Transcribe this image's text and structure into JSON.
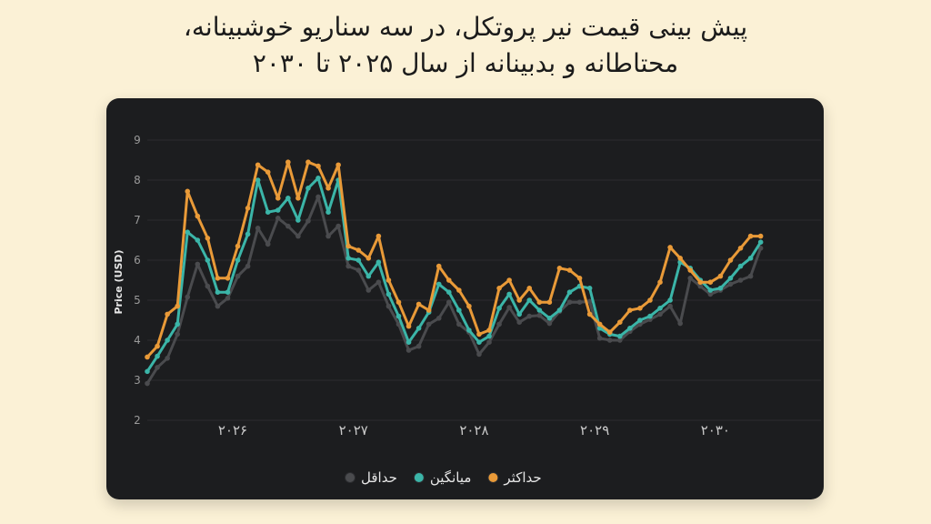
{
  "title_line1": "پیش بینی قیمت نیر پروتکل، در سه سناریو خوشبینانه،",
  "title_line2": "محتاطانه و بدبینانه از سال ۲۰۲۵ تا ۲۰۳۰",
  "chart_data": {
    "type": "line",
    "ylabel": "Price (USD)",
    "xlabel": "",
    "ylim": [
      2,
      9
    ],
    "yticks": [
      2,
      3,
      4,
      5,
      6,
      7,
      8,
      9
    ],
    "xlim": [
      0,
      67
    ],
    "xticks": [
      {
        "pos": 8.5,
        "label": "۲۰۲۶"
      },
      {
        "pos": 20.5,
        "label": "۲۰۲۷"
      },
      {
        "pos": 32.5,
        "label": "۲۰۲۸"
      },
      {
        "pos": 44.5,
        "label": "۲۰۲۹"
      },
      {
        "pos": 56.5,
        "label": "۲۰۳۰"
      }
    ],
    "grid": "horizontal",
    "legend": "bottom",
    "series": [
      {
        "name": "حداقل",
        "color": "#4a4b4e",
        "values": [
          2.92,
          3.32,
          3.55,
          4.15,
          5.08,
          5.9,
          5.35,
          4.85,
          5.05,
          5.6,
          5.85,
          6.8,
          6.4,
          7.05,
          6.85,
          6.6,
          6.98,
          7.58,
          6.6,
          6.85,
          5.85,
          5.75,
          5.25,
          5.45,
          4.85,
          4.4,
          3.75,
          3.85,
          4.4,
          4.55,
          4.95,
          4.4,
          4.2,
          3.65,
          3.95,
          4.4,
          4.82,
          4.45,
          4.6,
          4.62,
          4.42,
          4.72,
          4.95,
          4.95,
          4.97,
          4.05,
          4.0,
          4.0,
          4.22,
          4.4,
          4.52,
          4.65,
          4.85,
          4.42,
          5.55,
          5.35,
          5.15,
          5.25,
          5.4,
          5.5,
          5.6,
          6.3
        ]
      },
      {
        "name": "میانگین",
        "color": "#3bb5a8",
        "values": [
          3.22,
          3.6,
          4.0,
          4.4,
          6.7,
          6.5,
          6.0,
          5.2,
          5.2,
          6.0,
          6.65,
          8.0,
          7.2,
          7.25,
          7.55,
          7.0,
          7.8,
          8.05,
          7.2,
          8.0,
          6.05,
          6.0,
          5.6,
          5.95,
          5.15,
          4.6,
          3.95,
          4.3,
          4.7,
          5.4,
          5.2,
          4.75,
          4.25,
          3.95,
          4.1,
          4.8,
          5.15,
          4.65,
          5.0,
          4.75,
          4.55,
          4.75,
          5.2,
          5.35,
          5.3,
          4.3,
          4.15,
          4.1,
          4.3,
          4.5,
          4.6,
          4.8,
          5.0,
          5.95,
          5.8,
          5.5,
          5.25,
          5.3,
          5.55,
          5.85,
          6.05,
          6.45
        ]
      },
      {
        "name": "حداکثر",
        "color": "#e99a38",
        "values": [
          3.58,
          3.85,
          4.65,
          4.85,
          7.72,
          7.1,
          6.55,
          5.55,
          5.55,
          6.35,
          7.3,
          8.38,
          8.2,
          7.55,
          8.45,
          7.55,
          8.45,
          8.35,
          7.8,
          8.38,
          6.35,
          6.25,
          6.05,
          6.6,
          5.5,
          4.95,
          4.35,
          4.9,
          4.75,
          5.85,
          5.5,
          5.25,
          4.85,
          4.15,
          4.25,
          5.3,
          5.5,
          5.0,
          5.3,
          4.95,
          4.95,
          5.8,
          5.75,
          5.55,
          4.65,
          4.4,
          4.2,
          4.45,
          4.75,
          4.8,
          5.0,
          5.45,
          6.32,
          6.05,
          5.75,
          5.45,
          5.45,
          5.6,
          6.0,
          6.3,
          6.6,
          6.6
        ]
      }
    ]
  }
}
